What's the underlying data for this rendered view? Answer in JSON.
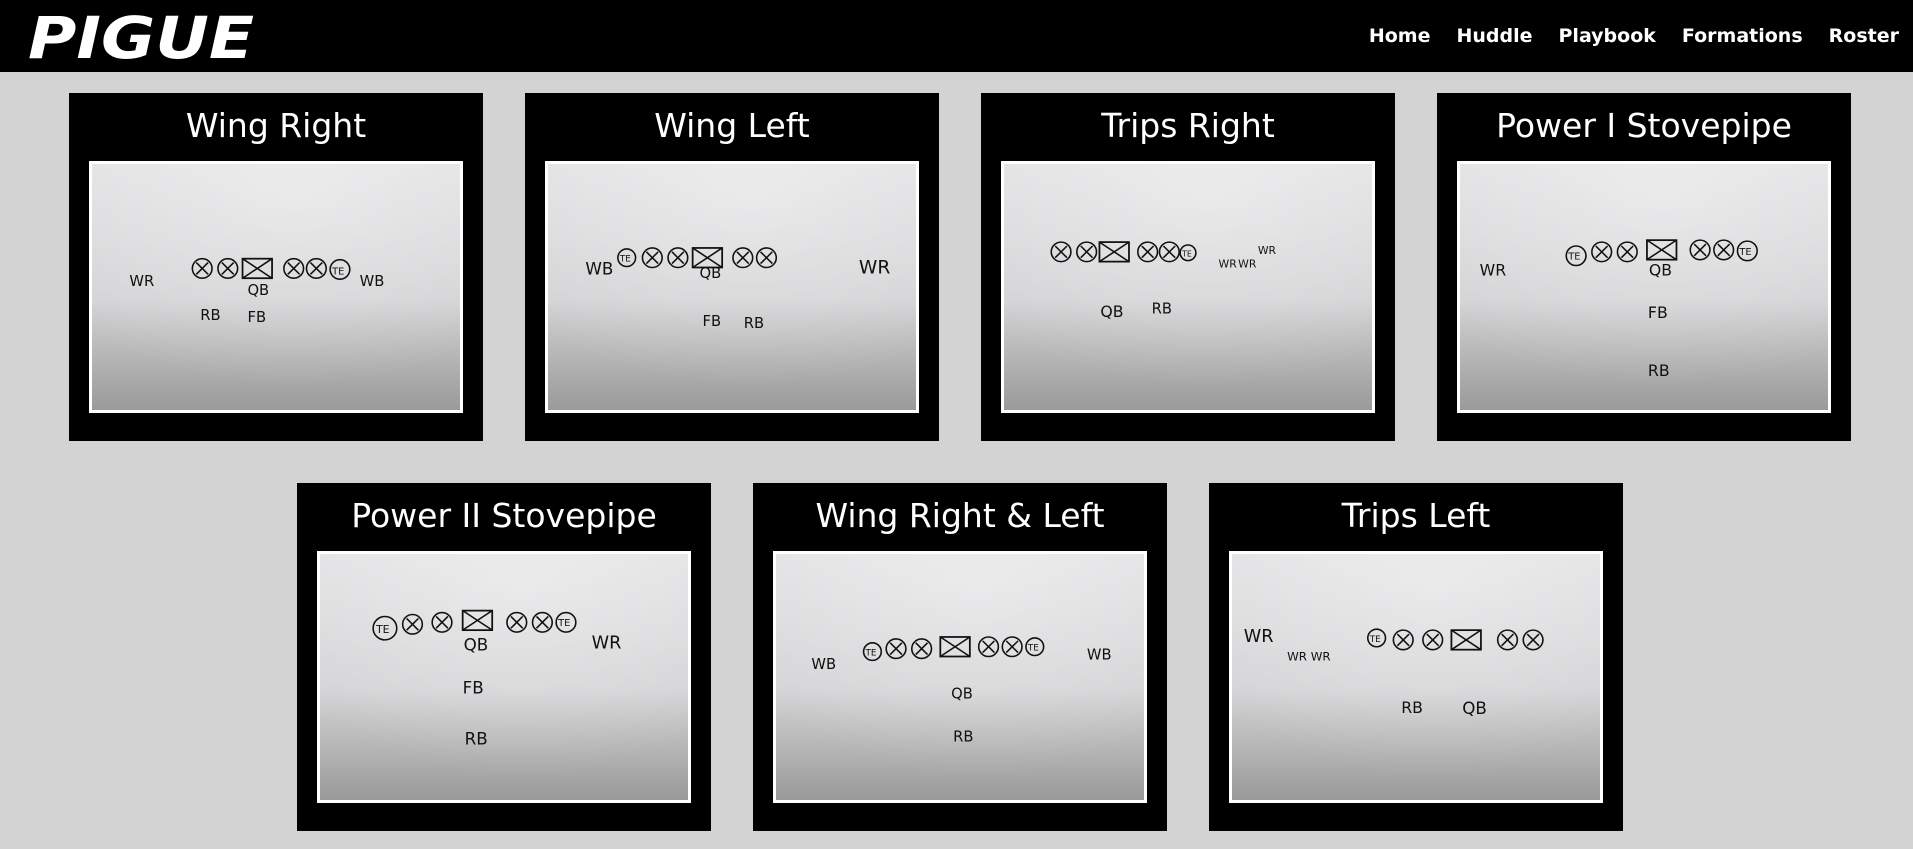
{
  "brand": {
    "logo_text": "PIGUE"
  },
  "nav": {
    "items": [
      {
        "label": "Home"
      },
      {
        "label": "Huddle"
      },
      {
        "label": "Playbook"
      },
      {
        "label": "Formations"
      },
      {
        "label": "Roster"
      }
    ]
  },
  "formations": [
    {
      "title": "Wing Right",
      "diagram_labels": {
        "wr": "WR",
        "qb": "QB",
        "wb": "WB",
        "rb": "RB",
        "fb": "FB",
        "te": "TE"
      }
    },
    {
      "title": "Wing Left",
      "diagram_labels": {
        "wb": "WB",
        "te": "TE",
        "qb": "QB",
        "wr": "WR",
        "fb": "FB",
        "rb": "RB"
      }
    },
    {
      "title": "Trips Right",
      "diagram_labels": {
        "te": "TE",
        "wr": "WR",
        "qb": "QB",
        "rb": "RB"
      }
    },
    {
      "title": "Power I Stovepipe",
      "diagram_labels": {
        "wr": "WR",
        "te": "TE",
        "qb": "QB",
        "fb": "FB",
        "rb": "RB"
      }
    },
    {
      "title": "Power II Stovepipe",
      "diagram_labels": {
        "te": "TE",
        "qb": "QB",
        "wr": "WR",
        "fb": "FB",
        "rb": "RB"
      }
    },
    {
      "title": "Wing Right & Left",
      "diagram_labels": {
        "wb": "WB",
        "te": "TE",
        "qb": "QB",
        "rb": "RB"
      }
    },
    {
      "title": "Trips Left",
      "diagram_labels": {
        "wr": "WR",
        "te": "TE",
        "rb": "RB",
        "qb": "QB"
      }
    }
  ]
}
